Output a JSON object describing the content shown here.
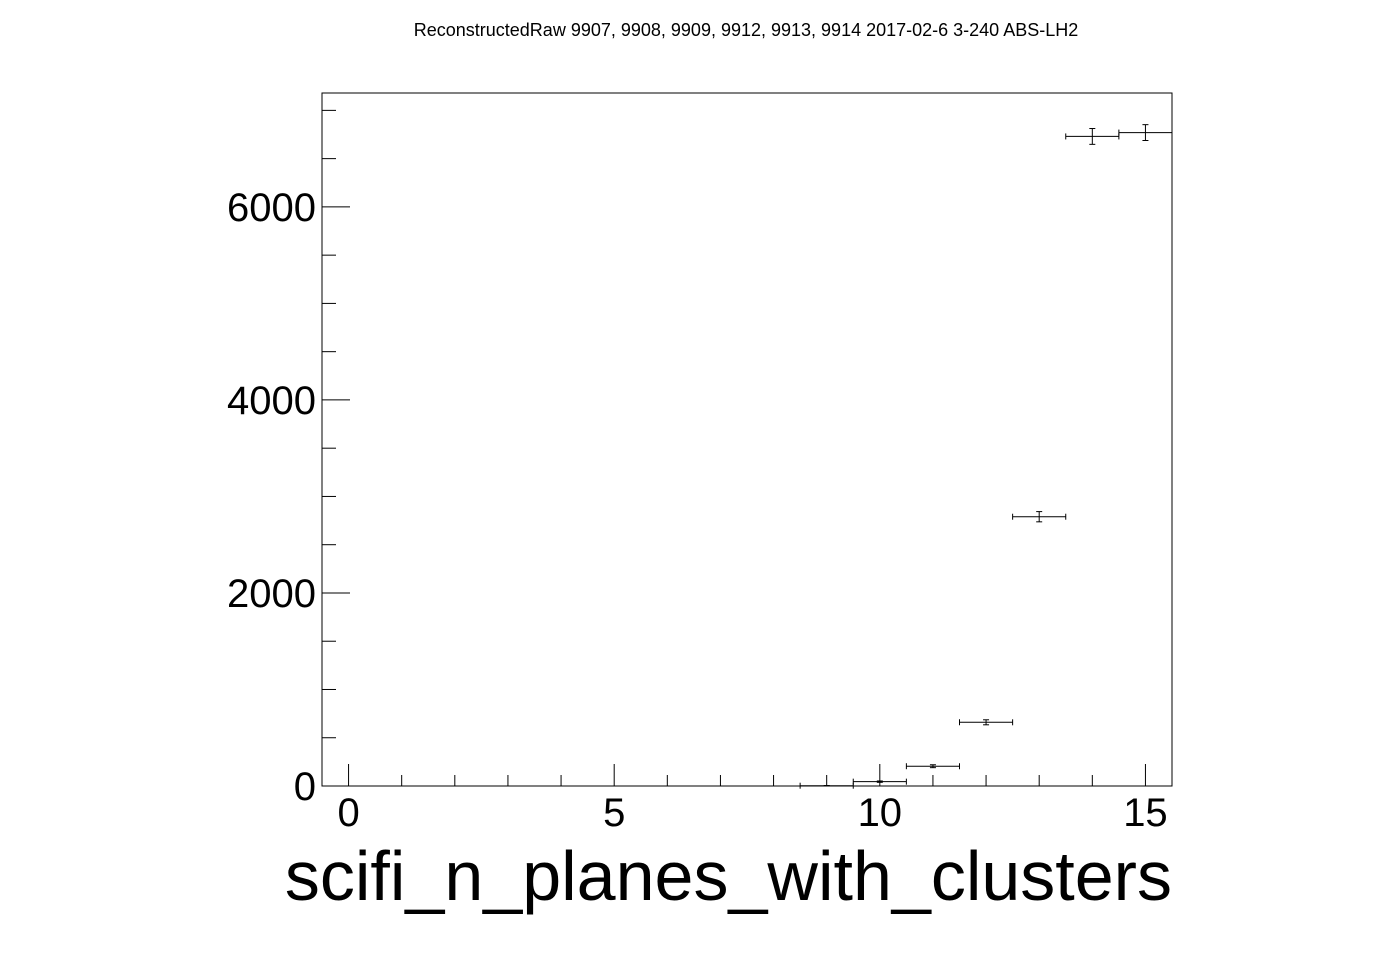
{
  "chart_data": {
    "type": "scatter",
    "title": "ReconstructedRaw 9907, 9908, 9909, 9912, 9913, 9914 2017-02-6 3-240 ABS-LH2",
    "xlabel": "scifi_n_planes_with_clusters",
    "ylabel": "",
    "xlim": [
      -0.5,
      15.5
    ],
    "ylim": [
      0,
      7180
    ],
    "x_ticks": [
      0,
      5,
      10,
      15
    ],
    "y_ticks": [
      0,
      2000,
      4000,
      6000
    ],
    "grid": false,
    "legend": "none",
    "bin_width": 1,
    "points": [
      {
        "x": 9,
        "y": 3,
        "err": 2
      },
      {
        "x": 10,
        "y": 45,
        "err": 7
      },
      {
        "x": 11,
        "y": 205,
        "err": 15
      },
      {
        "x": 12,
        "y": 660,
        "err": 26
      },
      {
        "x": 13,
        "y": 2790,
        "err": 53
      },
      {
        "x": 14,
        "y": 6730,
        "err": 82
      },
      {
        "x": 15,
        "y": 6770,
        "err": 82
      }
    ],
    "color": "#000000"
  }
}
